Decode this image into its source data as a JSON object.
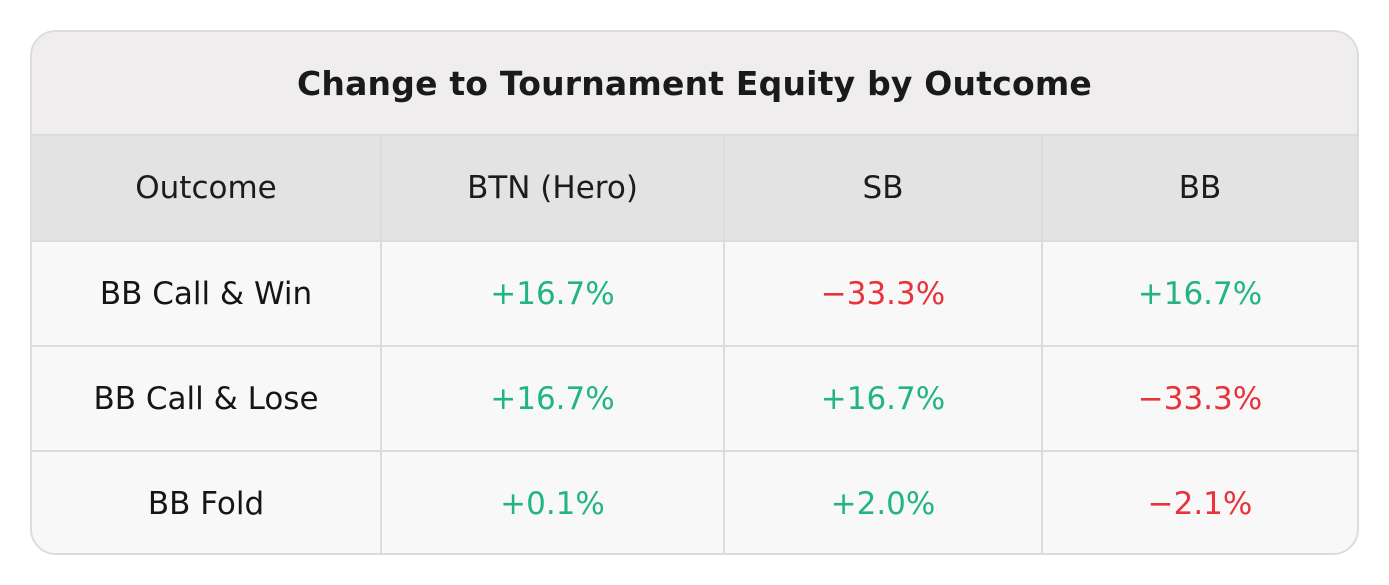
{
  "title": "Change to Tournament Equity by Outcome",
  "colors": {
    "positive": "#22b582",
    "negative": "#e8333a",
    "header_bg": "#e3e3e3",
    "title_bg": "#efeded",
    "border": "#dcdcdc"
  },
  "table": {
    "headers": [
      "Outcome",
      "BTN (Hero)",
      "SB",
      "BB"
    ],
    "rows": [
      {
        "outcome": "BB Call & Win",
        "cells": [
          {
            "value": "+16.7%",
            "sign": "positive"
          },
          {
            "value": "−33.3%",
            "sign": "negative"
          },
          {
            "value": "+16.7%",
            "sign": "positive"
          }
        ]
      },
      {
        "outcome": "BB Call & Lose",
        "cells": [
          {
            "value": "+16.7%",
            "sign": "positive"
          },
          {
            "value": "+16.7%",
            "sign": "positive"
          },
          {
            "value": "−33.3%",
            "sign": "negative"
          }
        ]
      },
      {
        "outcome": "BB Fold",
        "cells": [
          {
            "value": "+0.1%",
            "sign": "positive"
          },
          {
            "value": "+2.0%",
            "sign": "positive"
          },
          {
            "value": "−2.1%",
            "sign": "negative"
          }
        ]
      }
    ]
  }
}
